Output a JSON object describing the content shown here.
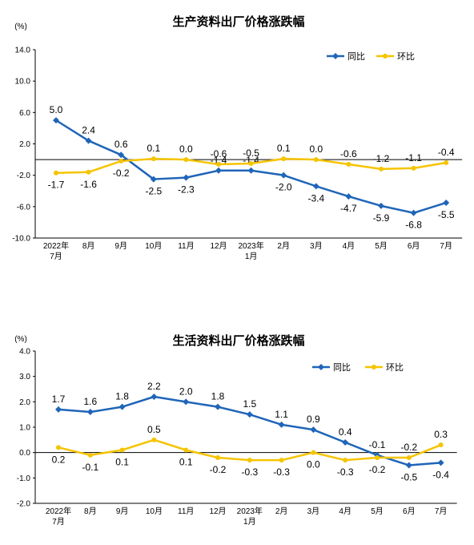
{
  "colors": {
    "yoy": "#1f65b8",
    "mom": "#f5c400",
    "axis": "#000000"
  },
  "chart_data": [
    {
      "type": "line",
      "title": "生产资料出厂价格涨跌幅",
      "unit": "(%)",
      "categories": [
        [
          "2022年",
          "7月"
        ],
        [
          "8月"
        ],
        [
          "9月"
        ],
        [
          "10月"
        ],
        [
          "11月"
        ],
        [
          "12月"
        ],
        [
          "2023年",
          "1月"
        ],
        [
          "2月"
        ],
        [
          "3月"
        ],
        [
          "4月"
        ],
        [
          "5月"
        ],
        [
          "6月"
        ],
        [
          "7月"
        ]
      ],
      "yticks": [
        "14.0",
        "10.0",
        "6.0",
        "2.0",
        "-2.0",
        "-6.0",
        "-10.0"
      ],
      "ylim": [
        -10,
        14
      ],
      "legend": "top-right",
      "grid": false,
      "series": [
        {
          "name": "同比",
          "values": [
            5.0,
            2.4,
            0.6,
            -2.5,
            -2.3,
            -1.4,
            -1.4,
            -2.0,
            -3.4,
            -4.7,
            -5.9,
            -6.8,
            -5.5
          ],
          "labels": [
            "5.0",
            "2.4",
            "0.6",
            "-2.5",
            "-2.3",
            "-1.4",
            "-1.4",
            "-2.0",
            "-3.4",
            "-4.7",
            "-5.9",
            "-6.8",
            "-5.5"
          ]
        },
        {
          "name": "环比",
          "values": [
            -1.7,
            -1.6,
            -0.2,
            0.1,
            0.0,
            -0.6,
            -0.5,
            0.1,
            0.0,
            -0.6,
            -1.2,
            -1.1,
            -0.4
          ],
          "labels": [
            "-1.7",
            "-1.6",
            "-0.2",
            "0.1",
            "0.0",
            "-0.6",
            "-0.5",
            "0.1",
            "0.0",
            "-0.6",
            "-1.2",
            "-1.1",
            "-0.4"
          ]
        }
      ]
    },
    {
      "type": "line",
      "title": "生活资料出厂价格涨跌幅",
      "unit": "(%)",
      "categories": [
        [
          "2022年",
          "7月"
        ],
        [
          "8月"
        ],
        [
          "9月"
        ],
        [
          "10月"
        ],
        [
          "11月"
        ],
        [
          "12月"
        ],
        [
          "2023年",
          "1月"
        ],
        [
          "2月"
        ],
        [
          "3月"
        ],
        [
          "4月"
        ],
        [
          "5月"
        ],
        [
          "6月"
        ],
        [
          "7月"
        ]
      ],
      "yticks": [
        "4.0",
        "3.0",
        "2.0",
        "1.0",
        "0.0",
        "-1.0",
        "-2.0"
      ],
      "ylim": [
        -2,
        4
      ],
      "legend": "top-right",
      "grid": false,
      "series": [
        {
          "name": "同比",
          "values": [
            1.7,
            1.6,
            1.8,
            2.2,
            2.0,
            1.8,
            1.5,
            1.1,
            0.9,
            0.4,
            -0.1,
            -0.5,
            -0.4
          ],
          "labels": [
            "1.7",
            "1.6",
            "1.8",
            "2.2",
            "2.0",
            "1.8",
            "1.5",
            "1.1",
            "0.9",
            "0.4",
            "-0.1",
            "-0.5",
            "-0.4"
          ]
        },
        {
          "name": "环比",
          "values": [
            0.2,
            -0.1,
            0.1,
            0.5,
            0.1,
            -0.2,
            -0.3,
            -0.3,
            0.0,
            -0.3,
            -0.2,
            -0.2,
            0.3
          ],
          "labels": [
            "0.2",
            "-0.1",
            "0.1",
            "0.5",
            "0.1",
            "-0.2",
            "-0.3",
            "-0.3",
            "0.0",
            "-0.3",
            "-0.2",
            "-0.2",
            "0.3"
          ]
        }
      ]
    }
  ]
}
